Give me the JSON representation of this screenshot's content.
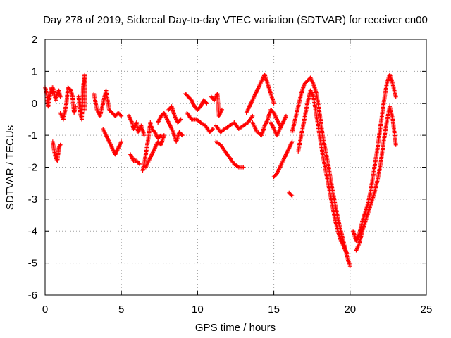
{
  "chart_data": {
    "type": "scatter",
    "title": "Day 278 of 2019, Sidereal Day-to-day VTEC variation (SDTVAR) for receiver cn00",
    "xlabel": "GPS time / hours",
    "ylabel": "SDTVAR / TECUs",
    "xlim": [
      0,
      25
    ],
    "ylim": [
      -6,
      2
    ],
    "xticks": [
      0,
      5,
      10,
      15,
      20,
      25
    ],
    "yticks": [
      -6,
      -5,
      -4,
      -3,
      -2,
      -1,
      0,
      1,
      2
    ],
    "xtick_labels": [
      "0",
      "5",
      "10",
      "15",
      "20",
      "25"
    ],
    "ytick_labels": [
      "-6",
      "-5",
      "-4",
      "-3",
      "-2",
      "-1",
      "0",
      "1",
      "2"
    ],
    "grid": true,
    "marker": "+",
    "series": [
      {
        "name": "SDTVAR",
        "color": "#ff0000",
        "tracks": [
          [
            [
              0.0,
              0.5
            ],
            [
              0.1,
              0.3
            ],
            [
              0.2,
              -0.1
            ],
            [
              0.3,
              0.2
            ],
            [
              0.4,
              0.5
            ],
            [
              0.5,
              0.3
            ]
          ],
          [
            [
              0.5,
              0.5
            ],
            [
              0.6,
              0.3
            ],
            [
              0.7,
              0.1
            ],
            [
              0.8,
              0.3
            ],
            [
              0.9,
              0.4
            ],
            [
              1.0,
              0.2
            ]
          ],
          [
            [
              0.5,
              -1.2
            ],
            [
              0.6,
              -1.5
            ],
            [
              0.7,
              -1.7
            ],
            [
              0.8,
              -1.8
            ],
            [
              0.9,
              -1.4
            ],
            [
              1.0,
              -1.3
            ]
          ],
          [
            [
              1.0,
              -0.3
            ],
            [
              1.2,
              -0.5
            ],
            [
              1.4,
              0.0
            ],
            [
              1.5,
              0.5
            ],
            [
              1.7,
              0.4
            ],
            [
              1.8,
              0.2
            ],
            [
              1.9,
              -0.3
            ],
            [
              2.0,
              -0.1
            ]
          ],
          [
            [
              2.2,
              0.2
            ],
            [
              2.3,
              -0.3
            ],
            [
              2.4,
              -0.5
            ],
            [
              2.5,
              0.5
            ],
            [
              2.6,
              0.9
            ],
            [
              2.6,
              -0.2
            ]
          ],
          [
            [
              3.2,
              0.3
            ],
            [
              3.4,
              -0.2
            ],
            [
              3.6,
              -0.4
            ],
            [
              3.8,
              0.0
            ],
            [
              4.0,
              0.4
            ],
            [
              4.2,
              -0.2
            ],
            [
              4.4,
              -0.3
            ],
            [
              4.6,
              -0.4
            ],
            [
              4.8,
              -0.3
            ],
            [
              5.0,
              -0.4
            ]
          ],
          [
            [
              3.8,
              -0.8
            ],
            [
              4.0,
              -1.0
            ],
            [
              4.2,
              -1.2
            ],
            [
              4.4,
              -1.4
            ],
            [
              4.6,
              -1.6
            ],
            [
              4.8,
              -1.4
            ],
            [
              5.0,
              -1.2
            ]
          ],
          [
            [
              5.5,
              -0.4
            ],
            [
              5.7,
              -0.6
            ],
            [
              5.8,
              -0.8
            ],
            [
              6.0,
              -0.6
            ],
            [
              6.1,
              -0.9
            ],
            [
              6.3,
              -0.7
            ],
            [
              6.5,
              -1.0
            ]
          ],
          [
            [
              5.6,
              -1.6
            ],
            [
              5.8,
              -1.8
            ],
            [
              6.0,
              -1.8
            ],
            [
              6.2,
              -1.9
            ]
          ],
          [
            [
              6.4,
              -2.1
            ],
            [
              6.5,
              -1.9
            ],
            [
              6.6,
              -1.6
            ],
            [
              6.7,
              -1.3
            ],
            [
              6.8,
              -1.0
            ],
            [
              6.9,
              -0.6
            ],
            [
              7.0,
              -0.8
            ],
            [
              7.2,
              -0.9
            ],
            [
              7.4,
              -1.1
            ],
            [
              7.6,
              -1.0
            ]
          ],
          [
            [
              6.6,
              -2.0
            ],
            [
              6.8,
              -1.8
            ],
            [
              7.0,
              -1.6
            ],
            [
              7.2,
              -1.4
            ],
            [
              7.4,
              -1.2
            ],
            [
              7.6,
              -1.3
            ],
            [
              7.8,
              -1.0
            ]
          ],
          [
            [
              7.4,
              -0.6
            ],
            [
              7.6,
              -0.4
            ],
            [
              7.8,
              -0.3
            ],
            [
              8.0,
              -0.5
            ],
            [
              8.2,
              -0.7
            ],
            [
              8.4,
              -0.9
            ],
            [
              8.6,
              -1.2
            ],
            [
              8.8,
              -0.9
            ],
            [
              9.0,
              -1.0
            ]
          ],
          [
            [
              8.1,
              -0.2
            ],
            [
              8.3,
              -0.1
            ],
            [
              8.5,
              -0.4
            ],
            [
              8.7,
              -0.6
            ],
            [
              8.9,
              -0.5
            ]
          ],
          [
            [
              9.2,
              0.3
            ],
            [
              9.4,
              0.2
            ],
            [
              9.6,
              0.1
            ],
            [
              9.8,
              -0.1
            ],
            [
              10.0,
              -0.2
            ],
            [
              10.2,
              -0.1
            ],
            [
              10.4,
              0.1
            ],
            [
              10.6,
              0.0
            ]
          ],
          [
            [
              9.3,
              -0.3
            ],
            [
              9.6,
              -0.5
            ],
            [
              9.9,
              -0.5
            ],
            [
              10.2,
              -0.6
            ],
            [
              10.5,
              -0.7
            ],
            [
              10.8,
              -0.9
            ],
            [
              11.0,
              -0.8
            ]
          ],
          [
            [
              10.9,
              0.2
            ],
            [
              11.1,
              0.1
            ],
            [
              11.3,
              0.3
            ],
            [
              11.4,
              -0.4
            ],
            [
              11.6,
              -0.2
            ]
          ],
          [
            [
              11.2,
              -0.7
            ],
            [
              11.5,
              -0.9
            ],
            [
              11.8,
              -0.8
            ],
            [
              12.1,
              -0.7
            ],
            [
              12.4,
              -0.6
            ],
            [
              12.7,
              -0.8
            ],
            [
              13.0,
              -0.7
            ],
            [
              13.3,
              -0.6
            ],
            [
              13.6,
              -0.4
            ]
          ],
          [
            [
              11.2,
              -1.2
            ],
            [
              11.5,
              -1.3
            ],
            [
              11.8,
              -1.5
            ],
            [
              12.1,
              -1.7
            ],
            [
              12.4,
              -1.9
            ],
            [
              12.7,
              -2.0
            ],
            [
              13.0,
              -2.0
            ]
          ],
          [
            [
              13.2,
              -0.3
            ],
            [
              13.4,
              -0.1
            ],
            [
              13.6,
              0.1
            ],
            [
              13.8,
              0.3
            ],
            [
              14.0,
              0.5
            ],
            [
              14.2,
              0.7
            ],
            [
              14.4,
              0.9
            ],
            [
              14.6,
              0.6
            ],
            [
              14.8,
              0.3
            ],
            [
              15.0,
              0.0
            ]
          ],
          [
            [
              13.6,
              -0.6
            ],
            [
              13.9,
              -0.9
            ],
            [
              14.2,
              -1.0
            ],
            [
              14.4,
              -0.7
            ],
            [
              14.6,
              -0.5
            ],
            [
              14.8,
              -0.2
            ],
            [
              15.0,
              -0.3
            ],
            [
              15.2,
              -0.5
            ],
            [
              15.4,
              -0.7
            ]
          ],
          [
            [
              14.8,
              -0.6
            ],
            [
              15.0,
              -0.8
            ],
            [
              15.2,
              -1.0
            ],
            [
              15.4,
              -0.8
            ],
            [
              15.6,
              -0.6
            ],
            [
              15.8,
              -0.4
            ]
          ],
          [
            [
              15.0,
              -2.3
            ],
            [
              15.2,
              -2.2
            ],
            [
              15.4,
              -2.0
            ],
            [
              15.6,
              -1.8
            ],
            [
              15.8,
              -1.6
            ],
            [
              16.0,
              -1.4
            ],
            [
              16.2,
              -1.2
            ]
          ],
          [
            [
              16.0,
              -2.8
            ],
            [
              16.2,
              -2.9
            ]
          ],
          [
            [
              16.2,
              -0.9
            ],
            [
              16.4,
              -0.5
            ],
            [
              16.6,
              -0.1
            ],
            [
              16.8,
              0.3
            ],
            [
              17.0,
              0.6
            ],
            [
              17.2,
              0.7
            ],
            [
              17.4,
              0.8
            ],
            [
              17.6,
              0.6
            ],
            [
              17.8,
              0.3
            ],
            [
              18.0,
              -0.3
            ],
            [
              18.2,
              -1.0
            ],
            [
              18.4,
              -1.5
            ],
            [
              18.6,
              -2.0
            ],
            [
              18.8,
              -2.6
            ],
            [
              19.0,
              -3.1
            ],
            [
              19.2,
              -3.6
            ],
            [
              19.4,
              -4.0
            ],
            [
              19.6,
              -4.4
            ],
            [
              19.8,
              -4.8
            ],
            [
              20.0,
              -5.1
            ]
          ],
          [
            [
              16.6,
              -1.5
            ],
            [
              16.8,
              -1.0
            ],
            [
              17.0,
              -0.5
            ],
            [
              17.2,
              0.0
            ],
            [
              17.4,
              0.4
            ],
            [
              17.6,
              0.2
            ],
            [
              17.8,
              -0.4
            ],
            [
              18.0,
              -1.0
            ],
            [
              18.2,
              -1.6
            ],
            [
              18.4,
              -2.1
            ],
            [
              18.6,
              -2.6
            ],
            [
              18.8,
              -3.1
            ],
            [
              19.0,
              -3.6
            ],
            [
              19.2,
              -4.0
            ],
            [
              19.4,
              -4.3
            ],
            [
              19.6,
              -4.5
            ],
            [
              19.8,
              -4.7
            ]
          ],
          [
            [
              20.2,
              -4.0
            ],
            [
              20.4,
              -4.3
            ],
            [
              20.6,
              -4.1
            ],
            [
              20.8,
              -3.7
            ],
            [
              21.0,
              -3.4
            ],
            [
              21.2,
              -3.1
            ],
            [
              21.4,
              -2.6
            ],
            [
              21.6,
              -2.0
            ],
            [
              21.8,
              -1.4
            ],
            [
              22.0,
              -0.7
            ],
            [
              22.2,
              0.0
            ],
            [
              22.4,
              0.6
            ],
            [
              22.6,
              0.9
            ],
            [
              22.8,
              0.6
            ],
            [
              23.0,
              0.2
            ]
          ],
          [
            [
              20.4,
              -4.6
            ],
            [
              20.6,
              -4.4
            ],
            [
              20.8,
              -4.0
            ],
            [
              21.0,
              -3.7
            ],
            [
              21.2,
              -3.4
            ],
            [
              21.4,
              -3.1
            ],
            [
              21.6,
              -2.8
            ],
            [
              21.8,
              -2.4
            ],
            [
              22.0,
              -1.9
            ],
            [
              22.2,
              -1.2
            ],
            [
              22.4,
              -0.6
            ],
            [
              22.6,
              -0.1
            ],
            [
              22.8,
              -0.5
            ],
            [
              23.0,
              -1.3
            ]
          ]
        ]
      }
    ]
  }
}
